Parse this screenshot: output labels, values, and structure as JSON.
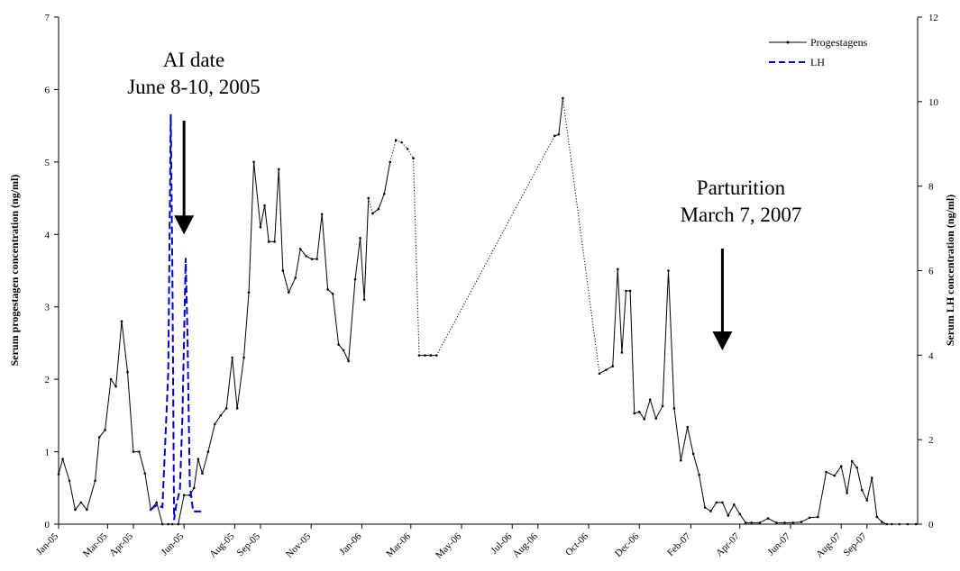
{
  "chart_data": {
    "type": "line",
    "title": "",
    "xlabel": "",
    "ylabel": "Serum progestagen concentration (ng/ml)",
    "y2label": "Serum LH concentration (ng/ml)",
    "ylim": [
      0,
      7
    ],
    "y2lim": [
      0,
      12
    ],
    "yticks": [
      0,
      1,
      2,
      3,
      4,
      5,
      6,
      7
    ],
    "y2ticks": [
      0,
      2,
      4,
      6,
      8,
      10,
      12
    ],
    "xlim": [
      "2005-01-01",
      "2007-11-01"
    ],
    "x_tick_labels": [
      "Jan-05",
      "Mar-05",
      "Apr-05",
      "Jun-05",
      "Aug-05",
      "Sep-05",
      "Nov-05",
      "Jan-06",
      "Mar-06",
      "May-06",
      "Jul-06",
      "Aug-06",
      "Oct-06",
      "Dec-06",
      "Feb-07",
      "Apr-07",
      "Jun-07",
      "Aug-07",
      "Sep-07"
    ],
    "x_tick_dates": [
      "2005-01-01",
      "2005-03-01",
      "2005-04-01",
      "2005-06-01",
      "2005-08-01",
      "2005-09-01",
      "2005-11-01",
      "2006-01-01",
      "2006-03-01",
      "2006-05-01",
      "2006-07-01",
      "2006-08-01",
      "2006-10-01",
      "2006-12-01",
      "2007-02-01",
      "2007-04-01",
      "2007-06-01",
      "2007-08-01",
      "2007-09-01"
    ],
    "grid": false,
    "legend_position": "top-right",
    "series": [
      {
        "name": "Progestagens",
        "axis": "left",
        "color": "#000000",
        "style": "solid-with-markers",
        "x": [
          "2005-01-01",
          "2005-01-06",
          "2005-01-14",
          "2005-01-21",
          "2005-01-28",
          "2005-02-04",
          "2005-02-14",
          "2005-02-19",
          "2005-02-26",
          "2005-03-05",
          "2005-03-11",
          "2005-03-18",
          "2005-03-25",
          "2005-04-01",
          "2005-04-08",
          "2005-04-15",
          "2005-04-22",
          "2005-04-29",
          "2005-05-06",
          "2005-05-13",
          "2005-05-18",
          "2005-05-25",
          "2005-06-01",
          "2005-06-08",
          "2005-06-13",
          "2005-06-18",
          "2005-06-23",
          "2005-06-30",
          "2005-07-08",
          "2005-07-15",
          "2005-07-22",
          "2005-07-29",
          "2005-08-04",
          "2005-08-12",
          "2005-08-18",
          "2005-08-24",
          "2005-09-01",
          "2005-09-06",
          "2005-09-11",
          "2005-09-18",
          "2005-09-23",
          "2005-09-28",
          "2005-10-05",
          "2005-10-13",
          "2005-10-19",
          "2005-10-26",
          "2005-11-02",
          "2005-11-08",
          "2005-11-14",
          "2005-11-21",
          "2005-11-27",
          "2005-12-04",
          "2005-12-10",
          "2005-12-16",
          "2005-12-24",
          "2005-12-30",
          "2006-01-04",
          "2006-01-09",
          "2006-01-14",
          "2006-01-21",
          "2006-01-28",
          "2006-02-04",
          "2006-02-11",
          "2006-02-18",
          "2006-02-25",
          "2006-03-04",
          "2006-03-11",
          "2006-03-18",
          "2006-03-25",
          "2006-04-01",
          "2006-08-21",
          "2006-08-26",
          "2006-08-31",
          "2006-10-14",
          "2006-10-22",
          "2006-10-30",
          "2006-11-05",
          "2006-11-10",
          "2006-11-15",
          "2006-11-20",
          "2006-11-25",
          "2006-12-01",
          "2006-12-07",
          "2006-12-14",
          "2006-12-21",
          "2006-12-29",
          "2007-01-05",
          "2007-01-12",
          "2007-01-20",
          "2007-01-28",
          "2007-02-04",
          "2007-02-11",
          "2007-02-18",
          "2007-02-25",
          "2007-03-04",
          "2007-03-11",
          "2007-03-18",
          "2007-03-25",
          "2007-04-01",
          "2007-04-08",
          "2007-04-15",
          "2007-04-25",
          "2007-05-05",
          "2007-05-15",
          "2007-05-25",
          "2007-06-04",
          "2007-06-14",
          "2007-06-24",
          "2007-07-04",
          "2007-07-14",
          "2007-07-24",
          "2007-08-01",
          "2007-08-08",
          "2007-08-14",
          "2007-08-20",
          "2007-08-26",
          "2007-09-01",
          "2007-09-07",
          "2007-09-13",
          "2007-09-19",
          "2007-09-25",
          "2007-10-01",
          "2007-10-10",
          "2007-10-20",
          "2007-10-30"
        ],
        "y": [
          0.69,
          0.9,
          0.6,
          0.2,
          0.3,
          0.2,
          0.6,
          1.2,
          1.3,
          2.0,
          1.9,
          2.8,
          2.1,
          1.0,
          1.0,
          0.7,
          0.2,
          0.3,
          0.0,
          0.0,
          0.0,
          0.0,
          0.4,
          0.4,
          0.5,
          0.9,
          0.7,
          1.0,
          1.38,
          1.5,
          1.6,
          2.3,
          1.6,
          2.3,
          3.2,
          5.0,
          4.1,
          4.4,
          3.9,
          3.9,
          4.9,
          3.5,
          3.2,
          3.4,
          3.8,
          3.7,
          3.66,
          3.66,
          4.28,
          3.24,
          3.18,
          2.48,
          2.4,
          2.25,
          3.38,
          3.95,
          3.1,
          4.5,
          4.29,
          4.35,
          4.56,
          5.0,
          5.3,
          5.27,
          5.18,
          5.05,
          2.33,
          2.33,
          2.33,
          2.33,
          5.36,
          5.38,
          5.88,
          2.08,
          2.13,
          2.18,
          3.52,
          2.37,
          3.22,
          3.22,
          1.53,
          1.55,
          1.45,
          1.72,
          1.46,
          1.63,
          3.5,
          1.6,
          0.88,
          1.34,
          0.97,
          0.68,
          0.23,
          0.18,
          0.3,
          0.3,
          0.12,
          0.27,
          0.14,
          0.02,
          0.02,
          0.02,
          0.08,
          0.02,
          0.02,
          0.02,
          0.03,
          0.09,
          0.1,
          0.72,
          0.67,
          0.8,
          0.43,
          0.87,
          0.78,
          0.47,
          0.33,
          0.64,
          0.1,
          0.03,
          0.0,
          0.0,
          0.0,
          0.0,
          0.0
        ],
        "dotted_segments_start_dates": [
          "2006-01-09",
          "2006-02-04",
          "2006-02-18",
          "2006-04-01",
          "2006-08-31"
        ],
        "dotted_segments_end_dates": [
          "2006-01-14",
          "2006-02-18",
          "2006-03-11",
          "2006-08-21",
          "2006-10-14"
        ]
      },
      {
        "name": "LH",
        "axis": "right",
        "color": "#0000cc",
        "style": "dashed",
        "x": [
          "2005-04-22",
          "2005-04-29",
          "2005-05-06",
          "2005-05-13",
          "2005-05-16",
          "2005-05-18",
          "2005-05-20",
          "2005-05-23",
          "2005-05-27",
          "2005-05-30",
          "2005-06-03",
          "2005-06-05",
          "2005-06-08",
          "2005-06-12",
          "2005-06-16",
          "2005-06-18",
          "2005-06-22"
        ],
        "y": [
          0.35,
          0.45,
          0.4,
          3.6,
          9.7,
          5.9,
          0.1,
          0.5,
          0.8,
          2.5,
          6.3,
          4.6,
          0.9,
          0.3,
          0.3,
          0.3,
          0.3
        ]
      }
    ],
    "annotations": [
      {
        "text_lines": [
          "AI date",
          "June 8-10, 2005"
        ],
        "arrow_date": "2005-06-01",
        "arrow_tip_value": 4.0
      },
      {
        "text_lines": [
          "Parturition",
          "March 7, 2007"
        ],
        "arrow_date": "2007-03-11",
        "arrow_tip_value": 2.4
      }
    ]
  }
}
